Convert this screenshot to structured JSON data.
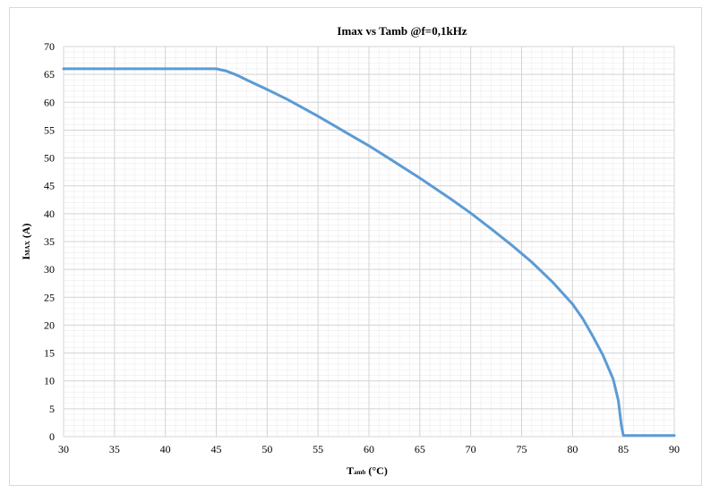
{
  "chart_data": {
    "type": "line",
    "title": "Imax vs Tamb @f=0,1kHz",
    "xlabel": {
      "main": "T",
      "sub": "amb",
      "unit": " (°C)"
    },
    "ylabel": {
      "main": "I",
      "sub": "MAX",
      "unit": " (A)"
    },
    "xlim": [
      30,
      90
    ],
    "ylim": [
      0,
      70
    ],
    "xticks": [
      30,
      35,
      40,
      45,
      50,
      55,
      60,
      65,
      70,
      75,
      80,
      85,
      90
    ],
    "yticks": [
      0,
      5,
      10,
      15,
      20,
      25,
      30,
      35,
      40,
      45,
      50,
      55,
      60,
      65,
      70
    ],
    "grid": true,
    "legend": "none",
    "series": [
      {
        "color": "#5b9bd5",
        "x": [
          30,
          45,
          46,
          47,
          48,
          50,
          52,
          55,
          58,
          60,
          62,
          65,
          68,
          70,
          72,
          74,
          76,
          78,
          80,
          81,
          82,
          83,
          84,
          84.5,
          84.8,
          85,
          90
        ],
        "y": [
          66,
          66,
          65.6,
          64.9,
          64.0,
          62.3,
          60.5,
          57.5,
          54.3,
          52.2,
          49.9,
          46.4,
          42.7,
          40.1,
          37.3,
          34.4,
          31.3,
          27.8,
          23.8,
          21.2,
          18.0,
          14.6,
          10.3,
          6.5,
          2.0,
          0.2,
          0.2
        ]
      }
    ]
  }
}
